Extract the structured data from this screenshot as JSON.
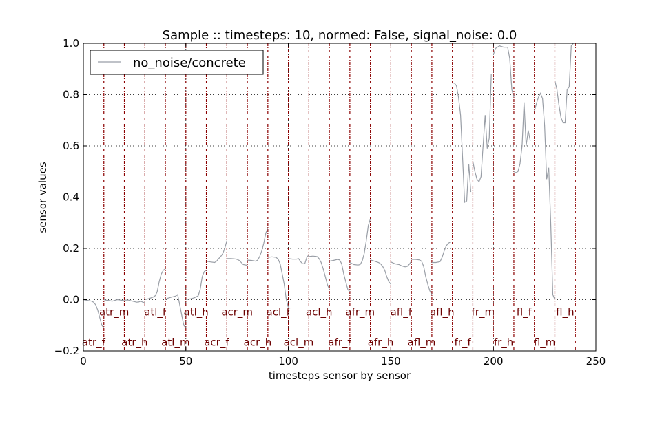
{
  "chart_data": {
    "type": "line",
    "title": "Sample :: timesteps: 10, normed: False, signal_noise: 0.0",
    "xlabel": "timesteps sensor by sensor",
    "ylabel": "sensor values",
    "xlim": [
      0,
      250
    ],
    "ylim": [
      -0.2,
      1.0
    ],
    "xticks": [
      0,
      50,
      100,
      150,
      200,
      250
    ],
    "yticks": [
      -0.2,
      0.0,
      0.2,
      0.4,
      0.6,
      0.8,
      1.0
    ],
    "xtick_labels": [
      "0",
      "50",
      "100",
      "150",
      "200",
      "250"
    ],
    "ytick_labels": [
      "−0.2",
      "0.0",
      "0.2",
      "0.4",
      "0.6",
      "0.8",
      "1.0"
    ],
    "grid": true,
    "legend_position": "top-left",
    "series_color": "#999ea6",
    "separator_color": "#8b0000",
    "sensor_boundaries": [
      10,
      20,
      30,
      40,
      50,
      60,
      70,
      80,
      90,
      100,
      110,
      120,
      130,
      140,
      150,
      160,
      170,
      180,
      190,
      200,
      210,
      220,
      230,
      240
    ],
    "sensor_labels": [
      {
        "text": "atr_f",
        "x": 5,
        "y": -0.167
      },
      {
        "text": "atr_m",
        "x": 15,
        "y": -0.048
      },
      {
        "text": "atr_h",
        "x": 25,
        "y": -0.167
      },
      {
        "text": "atl_f",
        "x": 35,
        "y": -0.048
      },
      {
        "text": "atl_m",
        "x": 45,
        "y": -0.167
      },
      {
        "text": "atl_h",
        "x": 55,
        "y": -0.048
      },
      {
        "text": "acr_f",
        "x": 65,
        "y": -0.167
      },
      {
        "text": "acr_m",
        "x": 75,
        "y": -0.048
      },
      {
        "text": "acr_h",
        "x": 85,
        "y": -0.167
      },
      {
        "text": "acl_f",
        "x": 95,
        "y": -0.048
      },
      {
        "text": "acl_m",
        "x": 105,
        "y": -0.167
      },
      {
        "text": "acl_h",
        "x": 115,
        "y": -0.048
      },
      {
        "text": "afr_f",
        "x": 125,
        "y": -0.167
      },
      {
        "text": "afr_m",
        "x": 135,
        "y": -0.048
      },
      {
        "text": "afr_h",
        "x": 145,
        "y": -0.167
      },
      {
        "text": "afl_f",
        "x": 155,
        "y": -0.048
      },
      {
        "text": "afl_m",
        "x": 165,
        "y": -0.167
      },
      {
        "text": "afl_h",
        "x": 175,
        "y": -0.048
      },
      {
        "text": "fr_f",
        "x": 185,
        "y": -0.167
      },
      {
        "text": "fr_m",
        "x": 195,
        "y": -0.048
      },
      {
        "text": "fr_h",
        "x": 205,
        "y": -0.167
      },
      {
        "text": "fl_f",
        "x": 215,
        "y": -0.048
      },
      {
        "text": "fl_m",
        "x": 225,
        "y": -0.167
      },
      {
        "text": "fl_h",
        "x": 235,
        "y": -0.048
      }
    ],
    "series": [
      {
        "name": "no_noise/concrete",
        "segments": [
          [
            [
              0,
              0.0
            ],
            [
              2,
              -0.003
            ],
            [
              4,
              -0.006
            ],
            [
              5,
              -0.01
            ],
            [
              6,
              -0.02
            ],
            [
              7,
              -0.04
            ],
            [
              8,
              -0.07
            ],
            [
              9,
              -0.1
            ],
            [
              10,
              -0.11
            ]
          ],
          [
            [
              10,
              0.0
            ],
            [
              11,
              -0.002
            ],
            [
              13,
              -0.004
            ],
            [
              14,
              -0.006
            ],
            [
              15,
              -0.004
            ],
            [
              16,
              -0.001
            ],
            [
              17,
              0.0
            ],
            [
              18,
              -0.002
            ],
            [
              20,
              -0.004
            ]
          ],
          [
            [
              20,
              -0.002
            ],
            [
              22,
              -0.002
            ],
            [
              24,
              -0.006
            ],
            [
              26,
              -0.01
            ],
            [
              27,
              -0.009
            ],
            [
              28,
              -0.006
            ],
            [
              29,
              -0.01
            ],
            [
              30,
              -0.012
            ]
          ],
          [
            [
              30,
              0.0
            ],
            [
              32,
              0.004
            ],
            [
              34,
              0.01
            ],
            [
              35,
              0.015
            ],
            [
              36,
              0.03
            ],
            [
              37,
              0.07
            ],
            [
              38,
              0.1
            ],
            [
              39,
              0.115
            ],
            [
              40,
              0.12
            ]
          ],
          [
            [
              40,
              0.0
            ],
            [
              41,
              0.005
            ],
            [
              43,
              0.01
            ],
            [
              45,
              0.014
            ],
            [
              46,
              0.02
            ],
            [
              47,
              -0.02
            ],
            [
              48,
              -0.06
            ],
            [
              49,
              -0.1
            ],
            [
              50,
              -0.11
            ]
          ],
          [
            [
              50,
              0.0
            ],
            [
              52,
              0.003
            ],
            [
              54,
              0.007
            ],
            [
              56,
              0.015
            ],
            [
              57,
              0.04
            ],
            [
              58,
              0.09
            ],
            [
              59,
              0.11
            ],
            [
              60,
              0.115
            ]
          ],
          [
            [
              60,
              0.15
            ],
            [
              62,
              0.147
            ],
            [
              64,
              0.145
            ],
            [
              65,
              0.15
            ],
            [
              66,
              0.16
            ],
            [
              67,
              0.168
            ],
            [
              68,
              0.18
            ],
            [
              69,
              0.2
            ],
            [
              70,
              0.23
            ]
          ],
          [
            [
              70,
              0.16
            ],
            [
              72,
              0.16
            ],
            [
              74,
              0.159
            ],
            [
              75,
              0.157
            ],
            [
              76,
              0.153
            ],
            [
              77,
              0.145
            ],
            [
              78,
              0.137
            ],
            [
              80,
              0.134
            ]
          ],
          [
            [
              80,
              0.154
            ],
            [
              82,
              0.153
            ],
            [
              84,
              0.15
            ],
            [
              85,
              0.154
            ],
            [
              86,
              0.168
            ],
            [
              87,
              0.19
            ],
            [
              88,
              0.22
            ],
            [
              89,
              0.26
            ],
            [
              90,
              0.28
            ]
          ],
          [
            [
              90,
              0.165
            ],
            [
              92,
              0.167
            ],
            [
              94,
              0.165
            ],
            [
              95,
              0.158
            ],
            [
              96,
              0.14
            ],
            [
              97,
              0.1
            ],
            [
              98,
              0.06
            ],
            [
              99,
              0.0
            ],
            [
              100,
              -0.03
            ]
          ],
          [
            [
              100,
              0.16
            ],
            [
              102,
              0.158
            ],
            [
              104,
              0.158
            ],
            [
              105,
              0.16
            ],
            [
              106,
              0.148
            ],
            [
              107,
              0.14
            ],
            [
              108,
              0.14
            ],
            [
              109,
              0.165
            ],
            [
              110,
              0.175
            ]
          ],
          [
            [
              110,
              0.168
            ],
            [
              112,
              0.17
            ],
            [
              114,
              0.168
            ],
            [
              115,
              0.16
            ],
            [
              116,
              0.145
            ],
            [
              117,
              0.12
            ],
            [
              118,
              0.09
            ],
            [
              119,
              0.06
            ],
            [
              120,
              0.04
            ]
          ],
          [
            [
              120,
              0.15
            ],
            [
              122,
              0.153
            ],
            [
              124,
              0.157
            ],
            [
              125,
              0.155
            ],
            [
              126,
              0.14
            ],
            [
              127,
              0.1
            ],
            [
              128,
              0.07
            ],
            [
              129,
              0.04
            ],
            [
              130,
              0.03
            ]
          ],
          [
            [
              130,
              0.145
            ],
            [
              132,
              0.137
            ],
            [
              134,
              0.135
            ],
            [
              135,
              0.137
            ],
            [
              136,
              0.15
            ],
            [
              137,
              0.18
            ],
            [
              138,
              0.23
            ],
            [
              139,
              0.29
            ],
            [
              140,
              0.315
            ]
          ],
          [
            [
              140,
              0.155
            ],
            [
              142,
              0.15
            ],
            [
              144,
              0.145
            ],
            [
              145,
              0.14
            ],
            [
              146,
              0.13
            ],
            [
              147,
              0.115
            ],
            [
              148,
              0.09
            ],
            [
              149,
              0.07
            ],
            [
              150,
              0.06
            ]
          ],
          [
            [
              150,
              0.147
            ],
            [
              152,
              0.14
            ],
            [
              154,
              0.137
            ],
            [
              155,
              0.133
            ],
            [
              156,
              0.13
            ],
            [
              157,
              0.128
            ],
            [
              158,
              0.13
            ],
            [
              159,
              0.138
            ],
            [
              160,
              0.15
            ]
          ],
          [
            [
              160,
              0.157
            ],
            [
              162,
              0.157
            ],
            [
              164,
              0.155
            ],
            [
              165,
              0.15
            ],
            [
              166,
              0.13
            ],
            [
              167,
              0.09
            ],
            [
              168,
              0.06
            ],
            [
              169,
              0.035
            ],
            [
              170,
              0.02
            ]
          ],
          [
            [
              170,
              0.145
            ],
            [
              172,
              0.145
            ],
            [
              174,
              0.148
            ],
            [
              175,
              0.165
            ],
            [
              176,
              0.19
            ],
            [
              177,
              0.21
            ],
            [
              178,
              0.22
            ],
            [
              179,
              0.225
            ]
          ],
          [
            [
              180,
              0.845
            ],
            [
              181,
              0.845
            ],
            [
              182,
              0.835
            ],
            [
              183,
              0.79
            ],
            [
              184,
              0.72
            ],
            [
              185,
              0.55
            ],
            [
              186,
              0.38
            ],
            [
              187,
              0.385
            ],
            [
              188,
              0.53
            ],
            [
              189,
              0.42
            ]
          ],
          [
            [
              190,
              0.54
            ],
            [
              191,
              0.5
            ],
            [
              192,
              0.47
            ],
            [
              193,
              0.46
            ],
            [
              194,
              0.48
            ],
            [
              195,
              0.6
            ],
            [
              196,
              0.72
            ],
            [
              197,
              0.59
            ],
            [
              198,
              0.63
            ],
            [
              199,
              0.88
            ]
          ],
          [
            [
              200,
              0.955
            ],
            [
              201,
              0.98
            ],
            [
              203,
              0.99
            ],
            [
              205,
              0.985
            ],
            [
              207,
              0.985
            ],
            [
              208,
              0.94
            ],
            [
              209,
              0.82
            ],
            [
              210,
              0.79
            ]
          ],
          [
            [
              210,
              0.5
            ],
            [
              211,
              0.495
            ],
            [
              212,
              0.5
            ],
            [
              213,
              0.53
            ],
            [
              214,
              0.6
            ],
            [
              215,
              0.77
            ],
            [
              216,
              0.6
            ],
            [
              217,
              0.66
            ],
            [
              218,
              0.62
            ]
          ],
          [
            [
              220,
              0.735
            ],
            [
              221,
              0.765
            ],
            [
              222,
              0.79
            ],
            [
              223,
              0.805
            ],
            [
              224,
              0.785
            ],
            [
              225,
              0.68
            ],
            [
              226,
              0.47
            ],
            [
              227,
              0.515
            ],
            [
              228,
              0.3
            ],
            [
              229,
              0.02
            ],
            [
              230,
              0.0
            ]
          ],
          [
            [
              230,
              0.855
            ],
            [
              231,
              0.82
            ],
            [
              232,
              0.76
            ],
            [
              233,
              0.71
            ],
            [
              234,
              0.69
            ],
            [
              235,
              0.69
            ],
            [
              236,
              0.82
            ],
            [
              237,
              0.83
            ],
            [
              238,
              0.99
            ],
            [
              239,
              1.0
            ]
          ]
        ]
      }
    ]
  }
}
